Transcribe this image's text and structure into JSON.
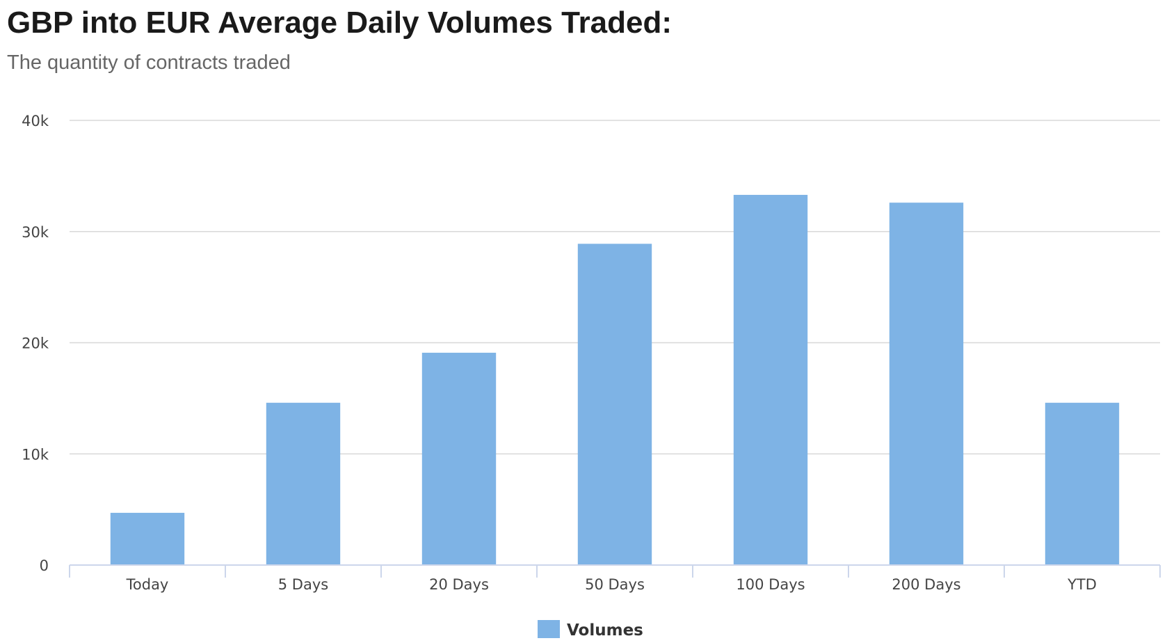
{
  "chart_data": {
    "type": "bar",
    "title": "GBP into EUR Average Daily Volumes Traded:",
    "subtitle": "The quantity of contracts traded",
    "categories": [
      "Today",
      "5 Days",
      "20 Days",
      "50 Days",
      "100 Days",
      "200 Days",
      "YTD"
    ],
    "series": [
      {
        "name": "Volumes",
        "color": "#7eb3e5",
        "values": [
          4700,
          14600,
          19100,
          28900,
          33300,
          32600,
          14600
        ]
      }
    ],
    "ylim": [
      0,
      40000
    ],
    "yticks": [
      {
        "value": 0,
        "label": "0"
      },
      {
        "value": 10000,
        "label": "10k"
      },
      {
        "value": 20000,
        "label": "20k"
      },
      {
        "value": 30000,
        "label": "30k"
      },
      {
        "value": 40000,
        "label": "40k"
      }
    ],
    "xlabel": "",
    "ylabel": "",
    "grid": true,
    "legend": "bottom-center",
    "colors": {
      "grid": "#d8d8d8",
      "axis": "#ccd6eb",
      "bar": "#7eb3e5"
    }
  }
}
